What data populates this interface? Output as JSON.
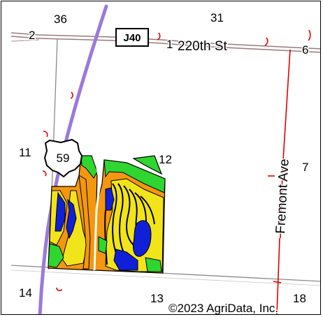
{
  "map": {
    "sections": [
      "36",
      "31",
      "11",
      "12",
      "7",
      "14",
      "13",
      "18"
    ],
    "roads": {
      "top_left_number": "2",
      "county_shield": "J40",
      "mid_number": "1",
      "street_name": "220th St",
      "right_number": "6",
      "avenue_name": "Fremont Ave",
      "us_route_shield": "59"
    },
    "copyright": "©2023 AgriData, Inc.",
    "colors": {
      "us_route": "#9b79dc",
      "county_road": "#e00000",
      "soil_orange": "#f4960e",
      "soil_yellow": "#f2e41a",
      "soil_blue": "#1020d8",
      "soil_green": "#2fd62f"
    }
  }
}
